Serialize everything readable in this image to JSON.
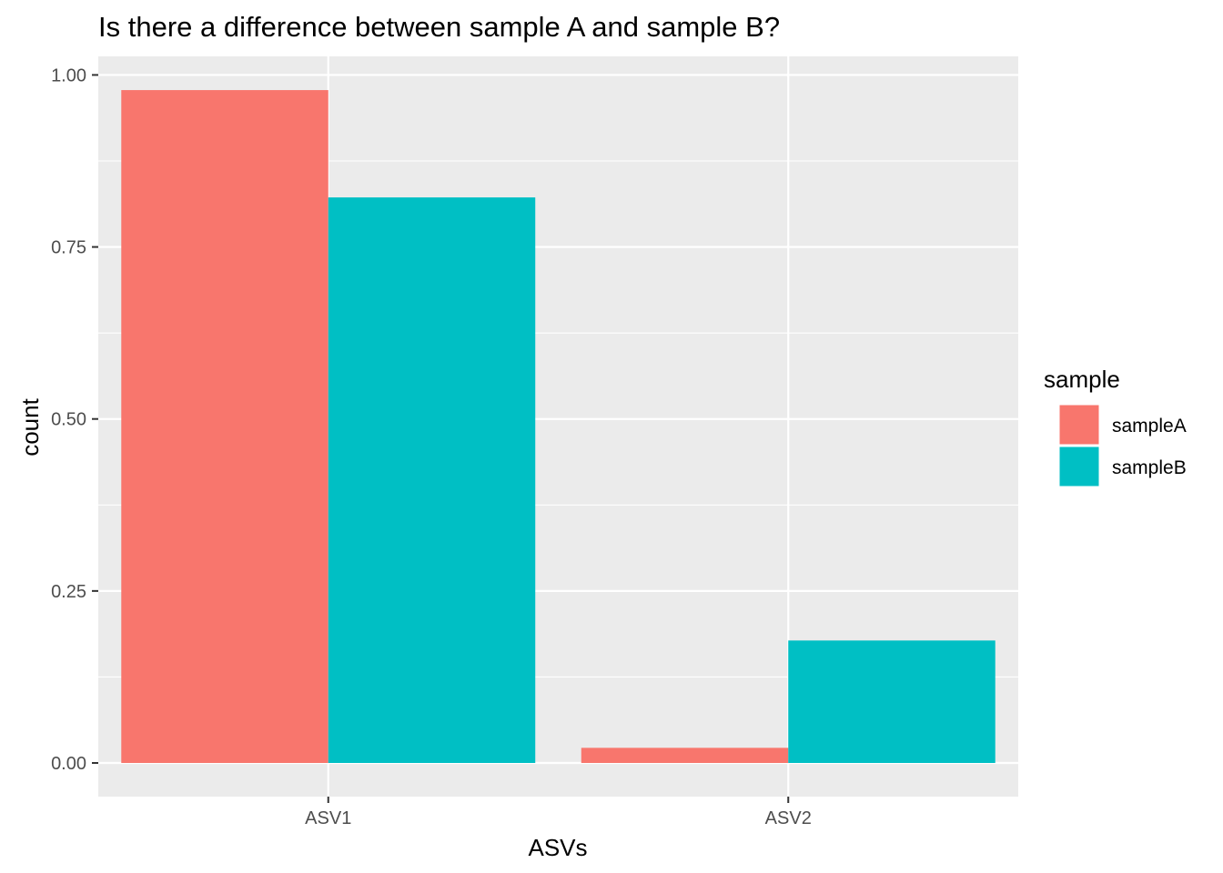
{
  "chart_data": {
    "type": "bar",
    "title": "Is there a difference between sample A and sample B?",
    "xlabel": "ASVs",
    "ylabel": "count",
    "categories": [
      "ASV1",
      "ASV2"
    ],
    "series": [
      {
        "name": "sampleA",
        "color": "#F8766D",
        "values": [
          0.978,
          0.022
        ]
      },
      {
        "name": "sampleB",
        "color": "#00BFC4",
        "values": [
          0.822,
          0.178
        ]
      }
    ],
    "ylim": [
      -0.0489,
      1.027
    ],
    "yticks": [
      0.0,
      0.25,
      0.5,
      0.75,
      1.0
    ],
    "ytick_labels": [
      "0.00",
      "0.25",
      "0.50",
      "0.75",
      "1.00"
    ],
    "grid": true,
    "legend": {
      "title": "sample",
      "position": "right"
    },
    "panel_color": "#EBEBEB"
  }
}
